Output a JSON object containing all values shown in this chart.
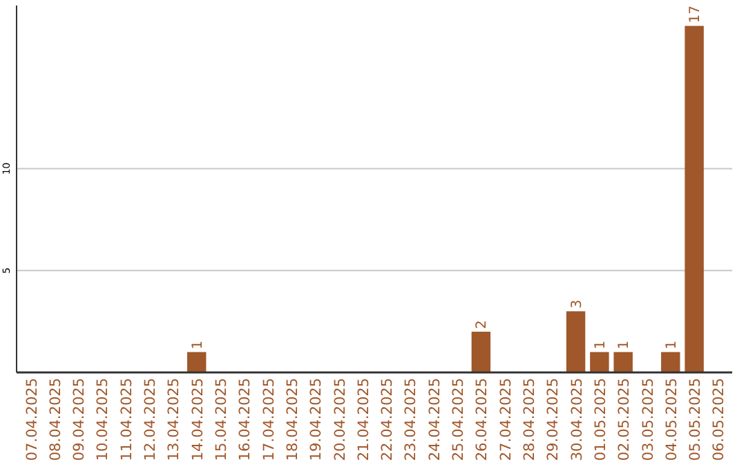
{
  "chart_data": {
    "type": "bar",
    "categories": [
      "07.04.2025",
      "08.04.2025",
      "09.04.2025",
      "10.04.2025",
      "11.04.2025",
      "12.04.2025",
      "13.04.2025",
      "14.04.2025",
      "15.04.2025",
      "16.04.2025",
      "17.04.2025",
      "18.04.2025",
      "19.04.2025",
      "20.04.2025",
      "21.04.2025",
      "22.04.2025",
      "23.04.2025",
      "24.04.2025",
      "25.04.2025",
      "26.04.2025",
      "27.04.2025",
      "28.04.2025",
      "29.04.2025",
      "30.04.2025",
      "01.05.2025",
      "02.05.2025",
      "03.05.2025",
      "04.05.2025",
      "05.05.2025",
      "06.05.2025"
    ],
    "values": [
      0,
      0,
      0,
      0,
      0,
      0,
      0,
      1,
      0,
      0,
      0,
      0,
      0,
      0,
      0,
      0,
      0,
      0,
      0,
      2,
      0,
      0,
      0,
      3,
      1,
      1,
      0,
      1,
      17,
      0
    ],
    "value_labels": [
      null,
      null,
      null,
      null,
      null,
      null,
      null,
      "1",
      null,
      null,
      null,
      null,
      null,
      null,
      null,
      null,
      null,
      null,
      null,
      "2",
      null,
      null,
      null,
      "3",
      "1",
      "1",
      null,
      "1",
      "17",
      null
    ],
    "color": "#a0572a",
    "ylim": [
      0,
      18
    ],
    "yticks": [
      5,
      10
    ],
    "grid": "y"
  }
}
